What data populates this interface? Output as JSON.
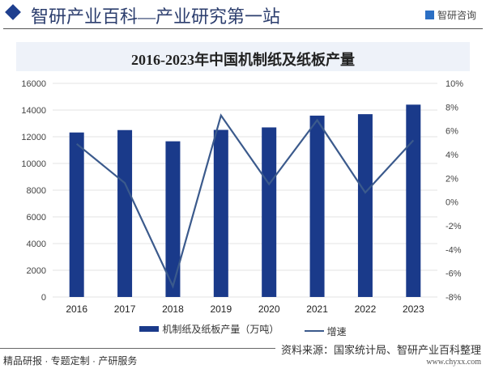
{
  "header": {
    "title": "智研产业百科—产业研究第一站",
    "brand": "智研咨询"
  },
  "chart_data": {
    "type": "bar+line",
    "title": "2016-2023年中国机制纸及纸板产量",
    "categories": [
      "2016",
      "2017",
      "2018",
      "2019",
      "2020",
      "2021",
      "2022",
      "2023"
    ],
    "series": [
      {
        "name": "机制纸及纸板产量（万吨）",
        "type": "bar",
        "axis": "left",
        "color": "#1a3a8a",
        "values": [
          12320,
          12500,
          11660,
          12515,
          12700,
          13583,
          13691,
          14405
        ]
      },
      {
        "name": "增速",
        "type": "line",
        "axis": "right",
        "color": "#3b5a8c",
        "values": [
          4.9,
          1.6,
          -7.1,
          7.3,
          1.5,
          6.9,
          0.8,
          5.2
        ]
      }
    ],
    "y_left": {
      "range": [
        0,
        16000
      ],
      "ticks": [
        "0",
        "2000",
        "4000",
        "6000",
        "8000",
        "10000",
        "12000",
        "14000",
        "16000"
      ]
    },
    "y_right": {
      "range": [
        -8,
        10
      ],
      "ticks": [
        "-8%",
        "-6%",
        "-4%",
        "-2%",
        "0%",
        "2%",
        "4%",
        "6%",
        "8%",
        "10%"
      ]
    },
    "grid": true,
    "legend": "bottom"
  },
  "footer": {
    "left": "精品研报 · 专题定制 · 产研服务",
    "source": "资料来源：国家统计局、智研产业百科整理",
    "url": "www.chyxx.com"
  }
}
